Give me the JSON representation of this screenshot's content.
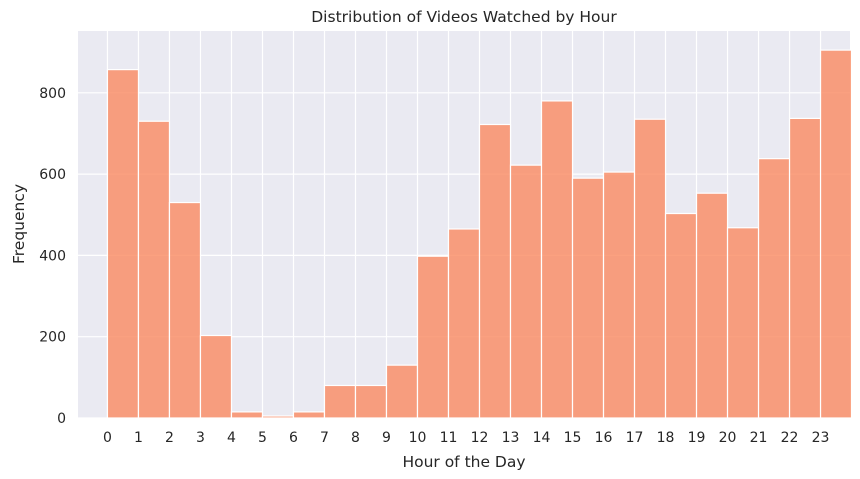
{
  "chart_data": {
    "type": "bar",
    "title": "Distribution of Videos Watched by Hour",
    "xlabel": "Hour of the Day",
    "ylabel": "Frequency",
    "categories": [
      "0",
      "1",
      "2",
      "3",
      "4",
      "5",
      "6",
      "7",
      "8",
      "9",
      "10",
      "11",
      "12",
      "13",
      "14",
      "15",
      "16",
      "17",
      "18",
      "19",
      "20",
      "21",
      "22",
      "23"
    ],
    "values": [
      857,
      730,
      530,
      203,
      15,
      5,
      15,
      80,
      80,
      130,
      398,
      465,
      722,
      622,
      780,
      590,
      605,
      735,
      503,
      553,
      468,
      638,
      737,
      905
    ],
    "yticks": [
      "0",
      "200",
      "400",
      "600",
      "800"
    ],
    "ylim": [
      0,
      952
    ],
    "xlim": [
      -0.95,
      23.95
    ],
    "grid": true,
    "colors": {
      "bar": "#fa8c64",
      "background": "#eaeaf2",
      "grid": "#ffffff"
    }
  }
}
